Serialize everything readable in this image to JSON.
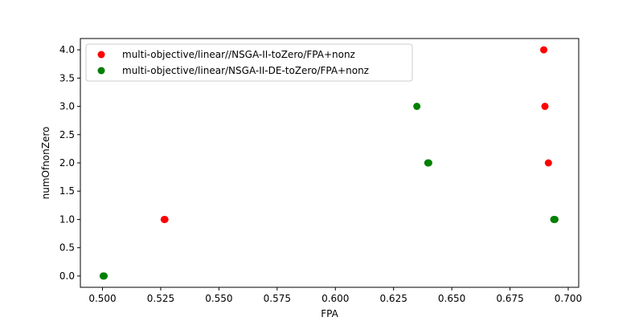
{
  "chart_data": {
    "type": "scatter",
    "xlabel": "FPA",
    "ylabel": "numOfnonZero",
    "xlim": [
      0.4905,
      0.7045
    ],
    "ylim": [
      -0.2,
      4.2
    ],
    "xticks": [
      "0.500",
      "0.525",
      "0.550",
      "0.575",
      "0.600",
      "0.625",
      "0.650",
      "0.675",
      "0.700"
    ],
    "yticks": [
      "0.0",
      "0.5",
      "1.0",
      "1.5",
      "2.0",
      "2.5",
      "3.0",
      "3.5",
      "4.0"
    ],
    "grid": false,
    "legend_position": "top-left",
    "series": [
      {
        "name": "multi-objective/linear//NSGA-II-toZero/FPA+nonz",
        "color": "#ff0000",
        "points": [
          {
            "x": 0.5265,
            "y": 1
          },
          {
            "x": 0.5268,
            "y": 1
          },
          {
            "x": 0.6895,
            "y": 4
          },
          {
            "x": 0.69,
            "y": 3
          },
          {
            "x": 0.6915,
            "y": 2
          }
        ]
      },
      {
        "name": "multi-objective/linear/NSGA-II-DE-toZero/FPA+nonz",
        "color": "#008000",
        "points": [
          {
            "x": 0.5003,
            "y": 0
          },
          {
            "x": 0.5007,
            "y": 0
          },
          {
            "x": 0.635,
            "y": 3
          },
          {
            "x": 0.6397,
            "y": 2
          },
          {
            "x": 0.6401,
            "y": 2
          },
          {
            "x": 0.6938,
            "y": 1
          },
          {
            "x": 0.6943,
            "y": 1
          }
        ]
      }
    ]
  }
}
